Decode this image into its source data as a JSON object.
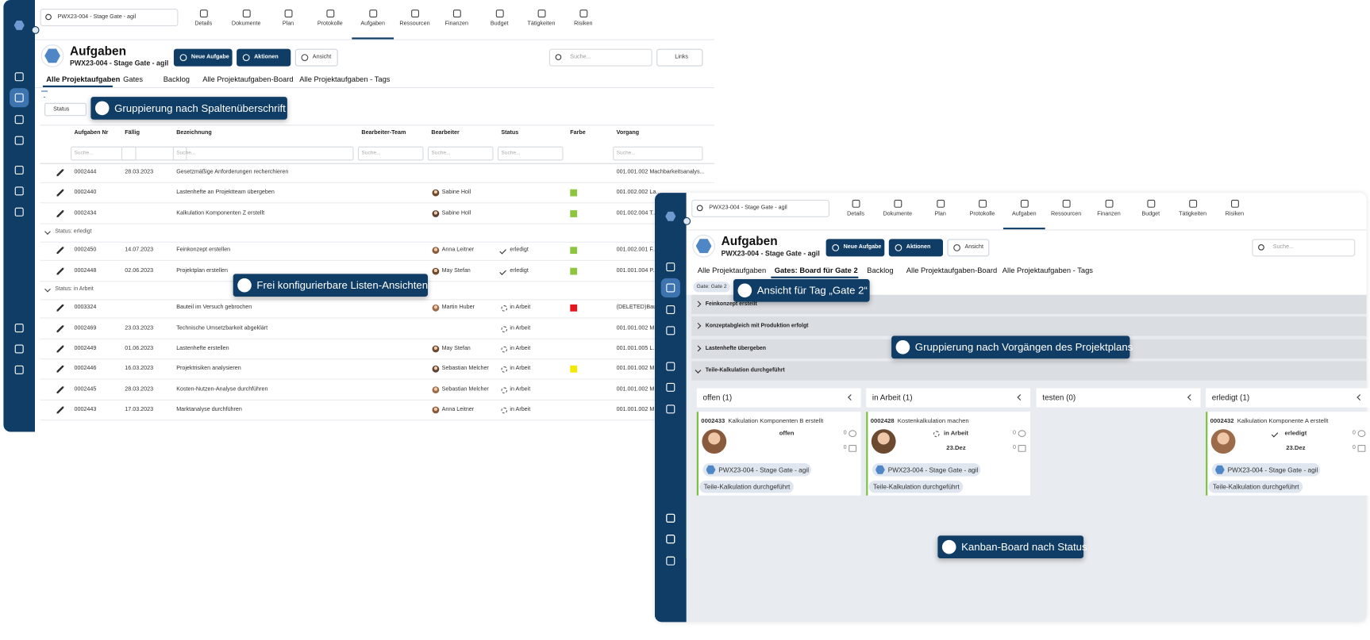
{
  "left": {
    "search": "PWX23-004 - Stage Gate - agil",
    "nav": [
      "Details",
      "Dokumente",
      "Plan",
      "Protokolle",
      "Aufgaben",
      "Ressourcen",
      "Finanzen",
      "Budget",
      "Tätigkeiten",
      "Risiken"
    ],
    "title": "Aufgaben",
    "subtitle": "PWX23-004 - Stage Gate - agil",
    "buttons": [
      "Neue Aufgabe",
      "Aktionen",
      "Ansicht"
    ],
    "search_placeholder": "Suche...",
    "links": "Links",
    "tabs": [
      "Alle Projektaufgaben",
      "Gates",
      "Backlog",
      "Alle Projektaufgaben-Board",
      "Alle Projektaufgaben - Tags"
    ],
    "group_chip": "Status",
    "columns": [
      "Aufgaben Nr",
      "Fällig",
      "Bezeichnung",
      "Bearbeiter-Team",
      "Bearbeiter",
      "Status",
      "Farbe",
      "Vorgang"
    ],
    "filter_placeholder": "Suche...",
    "rows": [
      {
        "nr": "0002444",
        "due": "28.03.2023",
        "name": "Gesetzmäßige Anforderungen recherchieren",
        "vorgang": "001.001.002 Machbarkeitsanalys..."
      },
      {
        "nr": "0002440",
        "name": "Lastenhefte an Projektteam übergeben",
        "person": "Sabine Holl",
        "color": "#8cc63f",
        "vorgang": "001.002.002 La..."
      },
      {
        "nr": "0002434",
        "name": "Kalkulation Komponenten Z erstellt",
        "person": "Sabine Holl",
        "color": "#8cc63f",
        "vorgang": "001.002.004 T..."
      },
      {
        "group": "Status: erledigt"
      },
      {
        "nr": "0002450",
        "due": "14.07.2023",
        "name": "Feinkonzept erstellen",
        "person": "Anna Leitner",
        "status": "erledigt",
        "color": "#8cc63f",
        "vorgang": "001.002.001 F..."
      },
      {
        "nr": "0002448",
        "due": "02.06.2023",
        "name": "Projektplan erstellen",
        "person": "May Stefan",
        "status": "erledigt",
        "color": "#8cc63f",
        "vorgang": "001.001.004 P..."
      },
      {
        "group": "Status: in Arbeit"
      },
      {
        "nr": "0003324",
        "name": "Bauteil im Versuch gebrochen",
        "person": "Martin Huber",
        "status": "in Arbeit",
        "color": "#e8141b",
        "vorgang": "(DELETED)Bau..."
      },
      {
        "nr": "0002469",
        "due": "23.03.2023",
        "name": "Technische Umsetzbarkeit abgeklärt",
        "status": "in Arbeit",
        "vorgang": "001.001.002 M..."
      },
      {
        "nr": "0002449",
        "due": "01.06.2023",
        "name": "Lastenhefte erstellen",
        "person": "May Stefan",
        "status": "in Arbeit",
        "vorgang": "001.001.005 L..."
      },
      {
        "nr": "0002446",
        "due": "16.03.2023",
        "name": "Projektrisiken analysieren",
        "person": "Sebastian Melcher",
        "status": "in Arbeit",
        "color": "#f5e800",
        "vorgang": "001.001.002 M..."
      },
      {
        "nr": "0002445",
        "due": "28.03.2023",
        "name": "Kosten-Nutzen-Analyse durchführen",
        "person": "Sebastian Melcher",
        "status": "in Arbeit",
        "vorgang": "001.001.002 M..."
      },
      {
        "nr": "0002443",
        "due": "17.03.2023",
        "name": "Marktanalyse durchführen",
        "person": "Anna Leitner",
        "status": "in Arbeit",
        "vorgang": "001.001.002 M..."
      }
    ]
  },
  "right": {
    "search": "PWX23-004 - Stage Gate - agil",
    "nav": [
      "Details",
      "Dokumente",
      "Plan",
      "Protokolle",
      "Aufgaben",
      "Ressourcen",
      "Finanzen",
      "Budget",
      "Tätigkeiten",
      "Risiken"
    ],
    "title": "Aufgaben",
    "subtitle": "PWX23-004 - Stage Gate - agil",
    "buttons": [
      "Neue Aufgabe",
      "Aktionen",
      "Ansicht"
    ],
    "search_placeholder": "Suche...",
    "tabs": [
      "Alle Projektaufgaben",
      "Gates: Board für Gate 2",
      "Backlog",
      "Alle Projektaufgaben-Board",
      "Alle Projektaufgaben - Tags"
    ],
    "tag_chip": "Gate: Gate 2",
    "groups": [
      "Feinkonzept erstellt",
      "Konzeptabgleich mit Produktion erfolgt",
      "Lastenhefte übergeben",
      "Teile-Kalkulation durchgeführt"
    ],
    "board": [
      {
        "title": "offen (1)",
        "cards": [
          {
            "nr": "0002433",
            "name": "Kalkulation Komponenten B erstellt",
            "status": "offen",
            "counts": [
              0,
              0
            ],
            "project": "PWX23-004 - Stage Gate - agil",
            "tag": "Teile-Kalkulation durchgeführt"
          }
        ]
      },
      {
        "title": "in Arbeit (1)",
        "cards": [
          {
            "nr": "0002428",
            "name": "Kostenkalkulation machen",
            "status": "in Arbeit",
            "date": "23.Dez",
            "counts": [
              0,
              0
            ],
            "project": "PWX23-004 - Stage Gate - agil",
            "tag": "Teile-Kalkulation durchgeführt"
          }
        ]
      },
      {
        "title": "testen (0)",
        "cards": []
      },
      {
        "title": "erledigt (1)",
        "cards": [
          {
            "nr": "0002432",
            "name": "Kalkulation Komponente A erstellt",
            "status": "erledigt",
            "date": "23.Dez",
            "counts": [
              0,
              0
            ],
            "project": "PWX23-004 - Stage Gate - agil",
            "tag": "Teile-Kalkulation durchgeführt"
          }
        ]
      }
    ]
  },
  "callouts": [
    "Gruppierung nach Spaltenüberschrift",
    "Frei konfigurierbare Listen-Ansichten",
    "Ansicht für Tag „Gate 2“",
    "Gruppierung nach Vorgängen des Projektplans",
    "Kanban-Board nach Status"
  ]
}
